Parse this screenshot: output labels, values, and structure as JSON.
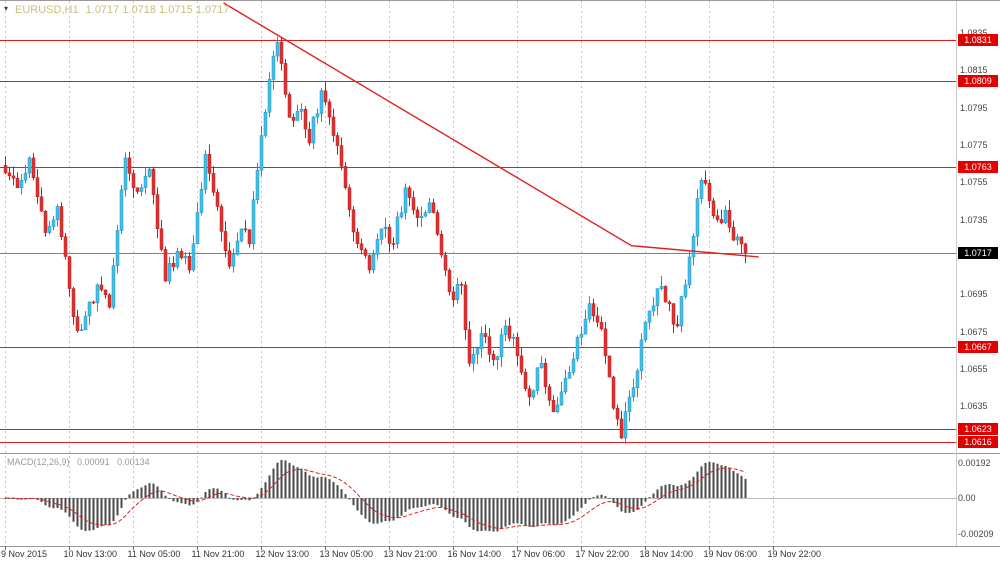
{
  "legend": {
    "symbol": "EURUSD,H1",
    "ohlc": "1.0717 1.0718 1.0715 1.0717"
  },
  "chart_data": {
    "type": "candlestick",
    "symbol": "EURUSD",
    "timeframe": "H1",
    "quote": {
      "open": "1.0717",
      "high": "1.0718",
      "low": "1.0715",
      "close": "1.0717"
    },
    "current_price": 1.0717,
    "current_price_label": "1.0717",
    "candle_count": 186,
    "price_path": [
      [
        0,
        1.076
      ],
      [
        3,
        1.0752
      ],
      [
        6,
        1.0768
      ],
      [
        10,
        1.0728
      ],
      [
        13,
        1.0742
      ],
      [
        17,
        1.0683
      ],
      [
        19,
        1.0676
      ],
      [
        23,
        1.07
      ],
      [
        26,
        1.0688
      ],
      [
        30,
        1.0768
      ],
      [
        33,
        1.075
      ],
      [
        36,
        1.0762
      ],
      [
        40,
        1.0702
      ],
      [
        43,
        1.0718
      ],
      [
        46,
        1.0708
      ],
      [
        50,
        1.077
      ],
      [
        53,
        1.0742
      ],
      [
        56,
        1.071
      ],
      [
        59,
        1.073
      ],
      [
        61,
        1.0722
      ],
      [
        64,
        1.078
      ],
      [
        66,
        1.081
      ],
      [
        68,
        1.083
      ],
      [
        70,
        1.0802
      ],
      [
        72,
        1.0788
      ],
      [
        74,
        1.0794
      ],
      [
        76,
        1.0776
      ],
      [
        79,
        1.0804
      ],
      [
        82,
        1.078
      ],
      [
        85,
        1.0752
      ],
      [
        88,
        1.0722
      ],
      [
        91,
        1.0708
      ],
      [
        94,
        1.073
      ],
      [
        97,
        1.0722
      ],
      [
        100,
        1.0752
      ],
      [
        103,
        1.0736
      ],
      [
        106,
        1.0744
      ],
      [
        109,
        1.0716
      ],
      [
        112,
        1.0692
      ],
      [
        114,
        1.07
      ],
      [
        116,
        1.0658
      ],
      [
        119,
        1.0674
      ],
      [
        122,
        1.066
      ],
      [
        125,
        1.0678
      ],
      [
        128,
        1.0662
      ],
      [
        131,
        1.064
      ],
      [
        134,
        1.0658
      ],
      [
        137,
        1.0632
      ],
      [
        140,
        1.065
      ],
      [
        143,
        1.0672
      ],
      [
        146,
        1.069
      ],
      [
        148,
        1.068
      ],
      [
        150,
        1.0662
      ],
      [
        152,
        1.0634
      ],
      [
        154,
        1.0618
      ],
      [
        156,
        1.064
      ],
      [
        158,
        1.0654
      ],
      [
        160,
        1.068
      ],
      [
        163,
        1.0698
      ],
      [
        166,
        1.069
      ],
      [
        168,
        1.0678
      ],
      [
        170,
        1.07
      ],
      [
        172,
        1.0726
      ],
      [
        174,
        1.0756
      ],
      [
        176,
        1.0745
      ],
      [
        178,
        1.0735
      ],
      [
        180,
        1.074
      ],
      [
        182,
        1.0724
      ],
      [
        184,
        1.0722
      ],
      [
        185,
        1.0717
      ]
    ],
    "levels": [
      "1.0831",
      "1.0809",
      "1.0763",
      "1.0667",
      "1.0623",
      "1.0616"
    ],
    "trendline": [
      [
        54.5,
        1.0851
      ],
      [
        156.5,
        1.0721
      ],
      [
        188.3,
        1.0715
      ]
    ],
    "y_axis": {
      "min_price": 1.061,
      "max_price": 1.0852,
      "plain_labels": [
        "1.0835",
        "1.0815",
        "1.0795",
        "1.0775",
        "1.0755",
        "1.0735",
        "1.0695",
        "1.0675",
        "1.0655",
        "1.0635"
      ]
    },
    "x_axis": {
      "tick_step": 16,
      "labels": [
        "9 Nov 2015",
        "10 Nov 13:00",
        "11 Nov 05:00",
        "11 Nov 21:00",
        "12 Nov 13:00",
        "13 Nov 05:00",
        "13 Nov 21:00",
        "16 Nov 14:00",
        "17 Nov 06:00",
        "17 Nov 22:00",
        "18 Nov 14:00",
        "19 Nov 06:00",
        "19 Nov 22:00"
      ]
    },
    "macd": {
      "name": "MACD(12,26,9)",
      "value_main": "0.00091",
      "value_signal": "0.00134",
      "fast": 12,
      "slow": 26,
      "signal": 9,
      "axis_labels": [
        "0.00192",
        "0.00",
        "-0.00209"
      ]
    }
  },
  "colors": {
    "bull": "#45bde8",
    "bull_border": "#1d95c2",
    "bear": "#e03030",
    "bear_border": "#b72020",
    "level": "#e02020",
    "trend": "#e02020",
    "grid": "#c4c4c4",
    "price_line": "#808080",
    "panel_sep": "#9a9a9a",
    "axis_sep": "#cccccc",
    "macd_hist": "#4a4a4a",
    "macd_signal": "#e02020",
    "macd_zero": "#bbbbbb",
    "axis_text": "#444444",
    "badge_red": "#e00000",
    "badge_black": "#000000",
    "watermark": "#c6bf7a"
  }
}
